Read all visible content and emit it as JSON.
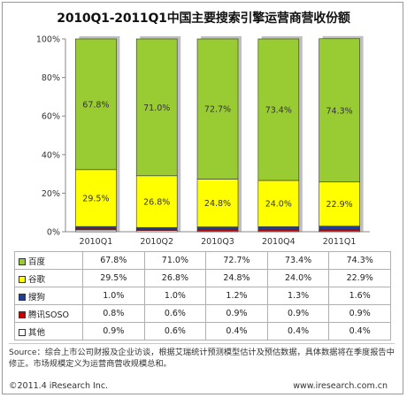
{
  "title": "2010Q1-2011Q1中国主要搜索引擎运营商营收份额",
  "chart_data": {
    "type": "bar",
    "stacked": true,
    "percent": true,
    "categories": [
      "2010Q1",
      "2010Q2",
      "2010Q3",
      "2010Q4",
      "2011Q1"
    ],
    "y_ticks": [
      "0%",
      "20%",
      "40%",
      "60%",
      "80%",
      "100%"
    ],
    "ylim": [
      0,
      100
    ],
    "series": [
      {
        "name": "百度",
        "color": "#99cc33",
        "values": [
          67.8,
          71.0,
          72.7,
          73.4,
          74.3
        ],
        "labels": [
          "67.8%",
          "71.0%",
          "72.7%",
          "73.4%",
          "74.3%"
        ]
      },
      {
        "name": "谷歌",
        "color": "#ffff00",
        "values": [
          29.5,
          26.8,
          24.8,
          24.0,
          22.9
        ],
        "labels": [
          "29.5%",
          "26.8%",
          "24.8%",
          "24.0%",
          "22.9%"
        ]
      },
      {
        "name": "搜狗",
        "color": "#1f3f99",
        "values": [
          1.0,
          1.0,
          1.2,
          1.3,
          1.6
        ],
        "labels": [
          "1.0%",
          "1.0%",
          "1.2%",
          "1.3%",
          "1.6%"
        ]
      },
      {
        "name": "腾讯SOSO",
        "color": "#cc0000",
        "values": [
          0.8,
          0.6,
          0.9,
          0.9,
          0.9
        ],
        "labels": [
          "0.8%",
          "0.6%",
          "0.9%",
          "0.9%",
          "0.9%"
        ]
      },
      {
        "name": "其他",
        "color": "#ffffff",
        "values": [
          0.9,
          0.6,
          0.4,
          0.4,
          0.4
        ],
        "labels": [
          "0.9%",
          "0.6%",
          "0.4%",
          "0.4%",
          "0.4%"
        ]
      }
    ]
  },
  "footer": {
    "note": "Source：综合上市公司财报及企业访谈，根据艾瑞统计预测模型估计及预估数据，具体数据将在季度报告中修正。市场规模定义为运营商营收规模总和。",
    "copyright": "©2011.4 iResearch Inc.",
    "website": "www.iresearch.com.cn"
  }
}
